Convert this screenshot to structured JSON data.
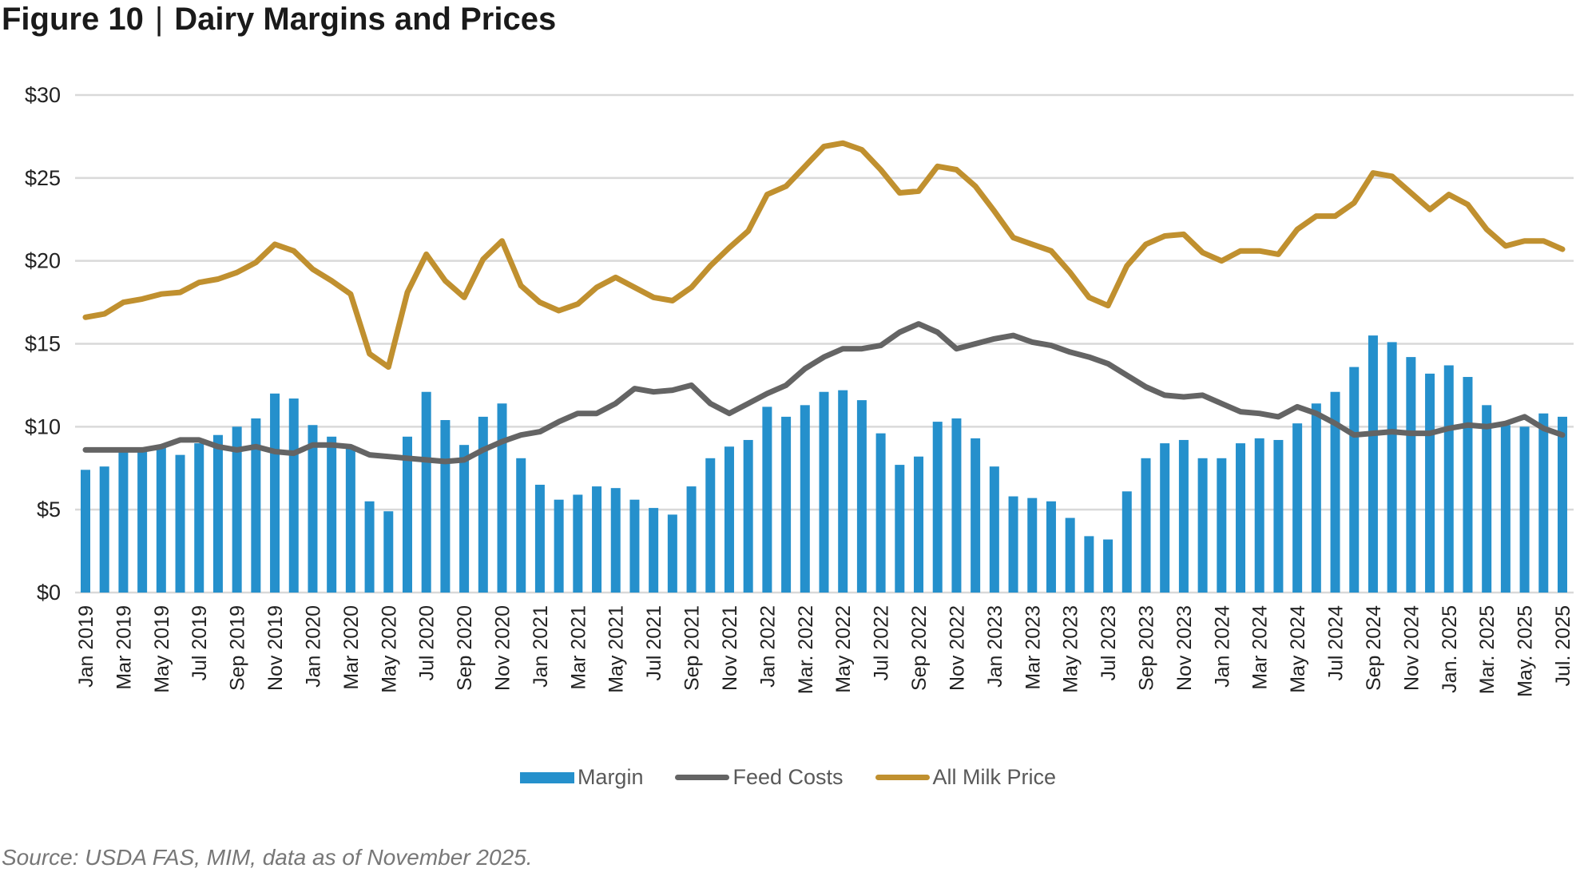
{
  "title": {
    "figure": "Figure 10",
    "separator": "|",
    "text": "Dairy Margins and Prices"
  },
  "source": "Source: USDA FAS, MIM, data as of November 2025.",
  "chart_data": {
    "type": "bar+line",
    "title": "Dairy Margins and Prices",
    "xlabel": "",
    "ylabel": "",
    "ylim": [
      0,
      30
    ],
    "yticks": [
      "$0",
      "$5",
      "$10",
      "$15",
      "$20",
      "$25",
      "$30"
    ],
    "ytick_values": [
      0,
      5,
      10,
      15,
      20,
      25,
      30
    ],
    "grid": "horizontal",
    "legend": "bottom",
    "x_start": "Jan 2019",
    "x_end": "Jul 2025",
    "xtick_labels": [
      "Jan 2019",
      "Mar 2019",
      "May 2019",
      "Jul 2019",
      "Sep 2019",
      "Nov 2019",
      "Jan 2020",
      "Mar 2020",
      "May 2020",
      "Jul 2020",
      "Sep 2020",
      "Nov 2020",
      "Jan 2021",
      "Mar 2021",
      "May 2021",
      "Jul 2021",
      "Sep 2021",
      "Nov 2021",
      "Jan 2022",
      "Mar. 2022",
      "May 2022",
      "Jul 2022",
      "Sep 2022",
      "Nov 2022",
      "Jan 2023",
      "Mar 2023",
      "May 2023",
      "Jul 2023",
      "Sep 2023",
      "Nov 2023",
      "Jan 2024",
      "Mar 2024",
      "May 2024",
      "Jul 2024",
      "Sep 2024",
      "Nov 2024",
      "Jan. 2025",
      "Mar. 2025",
      "May. 2025",
      "Jul. 2025"
    ],
    "series": [
      {
        "name": "Margin",
        "type": "bar",
        "color": "#2590cc",
        "values": [
          7.4,
          7.6,
          8.5,
          8.5,
          8.8,
          8.3,
          9.0,
          9.5,
          10.0,
          10.5,
          12.0,
          11.7,
          10.1,
          9.4,
          8.7,
          5.5,
          4.9,
          9.4,
          12.1,
          10.4,
          8.9,
          10.6,
          11.4,
          8.1,
          6.5,
          5.6,
          5.9,
          6.4,
          6.3,
          5.6,
          5.1,
          4.7,
          6.4,
          8.1,
          8.8,
          9.2,
          11.2,
          10.6,
          11.3,
          12.1,
          12.2,
          11.6,
          9.6,
          7.7,
          8.2,
          10.3,
          10.5,
          9.3,
          7.6,
          5.8,
          5.7,
          5.5,
          4.5,
          3.4,
          3.2,
          6.1,
          8.1,
          9.0,
          9.2,
          8.1,
          8.1,
          9.0,
          9.3,
          9.2,
          10.2,
          11.4,
          12.1,
          13.6,
          15.5,
          15.1,
          14.2,
          13.2,
          13.7,
          13.0,
          11.3,
          10.1,
          10.0,
          10.8,
          10.6
        ]
      },
      {
        "name": "Feed Costs",
        "type": "line",
        "color": "#646464",
        "values": [
          8.6,
          8.6,
          8.6,
          8.6,
          8.8,
          9.2,
          9.2,
          8.8,
          8.6,
          8.8,
          8.5,
          8.4,
          8.9,
          8.9,
          8.8,
          8.3,
          8.2,
          8.1,
          8.0,
          7.9,
          8.0,
          8.6,
          9.1,
          9.5,
          9.7,
          10.3,
          10.8,
          10.8,
          11.4,
          12.3,
          12.1,
          12.2,
          12.5,
          11.4,
          10.8,
          11.4,
          12.0,
          12.5,
          13.5,
          14.2,
          14.7,
          14.7,
          14.9,
          15.7,
          16.2,
          15.7,
          14.7,
          15.0,
          15.3,
          15.5,
          15.1,
          14.9,
          14.5,
          14.2,
          13.8,
          13.1,
          12.4,
          11.9,
          11.8,
          11.9,
          11.4,
          10.9,
          10.8,
          10.6,
          11.2,
          10.8,
          10.2,
          9.5,
          9.6,
          9.7,
          9.6,
          9.6,
          9.9,
          10.1,
          10.0,
          10.2,
          10.6,
          9.9,
          9.5
        ]
      },
      {
        "name": "All Milk Price",
        "type": "line",
        "color": "#c0902f",
        "values": [
          16.6,
          16.8,
          17.5,
          17.7,
          18.0,
          18.1,
          18.7,
          18.9,
          19.3,
          19.9,
          21.0,
          20.6,
          19.5,
          18.8,
          18.0,
          14.4,
          13.6,
          18.1,
          20.4,
          18.8,
          17.8,
          20.1,
          21.2,
          18.5,
          17.5,
          17.0,
          17.4,
          18.4,
          19.0,
          18.4,
          17.8,
          17.6,
          18.4,
          19.7,
          20.8,
          21.8,
          24.0,
          24.5,
          25.7,
          26.9,
          27.1,
          26.7,
          25.5,
          24.1,
          24.2,
          25.7,
          25.5,
          24.5,
          23.0,
          21.4,
          21.0,
          20.6,
          19.3,
          17.8,
          17.3,
          19.7,
          21.0,
          21.5,
          21.6,
          20.5,
          20.0,
          20.6,
          20.6,
          20.4,
          21.9,
          22.7,
          22.7,
          23.5,
          25.3,
          25.1,
          24.1,
          23.1,
          24.0,
          23.4,
          21.9,
          20.9,
          21.2,
          21.2,
          20.7
        ]
      }
    ]
  },
  "legend": {
    "margin": "Margin",
    "feed": "Feed Costs",
    "milk": "All Milk Price"
  }
}
